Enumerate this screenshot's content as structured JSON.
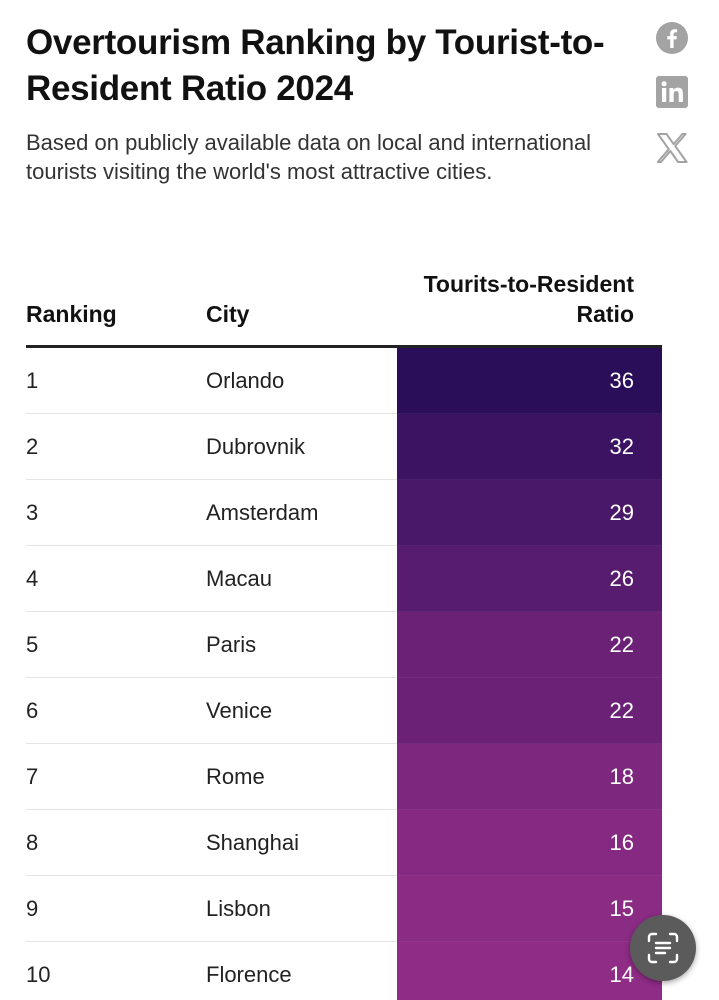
{
  "header": {
    "title": "Overtourism Ranking by Tourist-to-Resident Ratio 2024",
    "subtitle": "Based on publicly available data on local and international tourists visiting the world's most attractive cities."
  },
  "share_icons": [
    "facebook-icon",
    "linkedin-icon",
    "x-icon"
  ],
  "floating_button_icon": "text-scan-icon",
  "chart_data": {
    "type": "table",
    "title": "Overtourism Ranking by Tourist-to-Resident Ratio 2024",
    "subtitle": "Based on publicly available data on local and international tourists visiting the world's most attractive cities.",
    "columns": [
      "Ranking",
      "City",
      "Tourits-to-Resident Ratio"
    ],
    "rows": [
      {
        "rank": "1",
        "city": "Orlando",
        "ratio": 36
      },
      {
        "rank": "2",
        "city": "Dubrovnik",
        "ratio": 32
      },
      {
        "rank": "3",
        "city": "Amsterdam",
        "ratio": 29
      },
      {
        "rank": "4",
        "city": "Macau",
        "ratio": 26
      },
      {
        "rank": "5",
        "city": "Paris",
        "ratio": 22
      },
      {
        "rank": "6",
        "city": "Venice",
        "ratio": 22
      },
      {
        "rank": "7",
        "city": "Rome",
        "ratio": 18
      },
      {
        "rank": "8",
        "city": "Shanghai",
        "ratio": 16
      },
      {
        "rank": "9",
        "city": "Lisbon",
        "ratio": 15
      },
      {
        "rank": "10",
        "city": "Florence",
        "ratio": 14
      }
    ],
    "color_scale": {
      "high": "#2a0e5a",
      "low": "#8f2c86"
    }
  }
}
